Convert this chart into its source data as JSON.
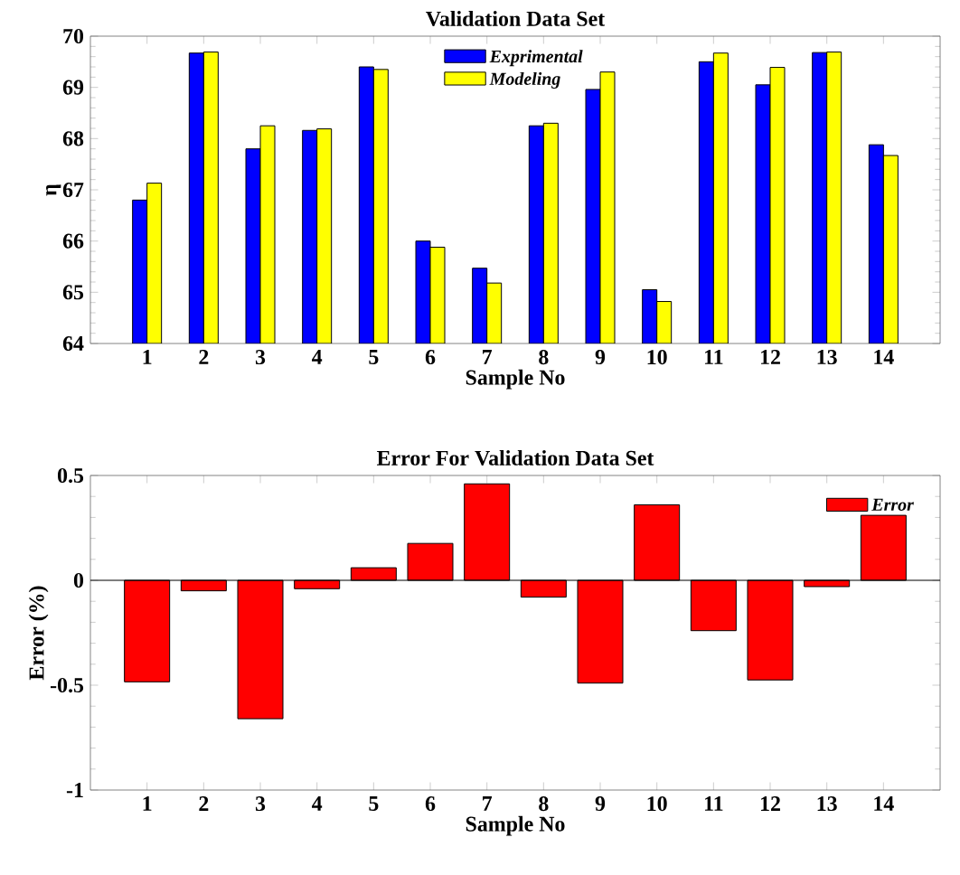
{
  "chart_data": [
    {
      "type": "bar",
      "title": "Validation Data Set",
      "xlabel": "Sample No",
      "ylabel": "η",
      "categories": [
        "1",
        "2",
        "3",
        "4",
        "5",
        "6",
        "7",
        "8",
        "9",
        "10",
        "11",
        "12",
        "13",
        "14"
      ],
      "series": [
        {
          "name": "Exprimental",
          "color": "#0000ff",
          "values": [
            66.8,
            69.67,
            67.8,
            68.16,
            69.4,
            66.0,
            65.47,
            68.25,
            68.96,
            65.05,
            69.5,
            69.05,
            69.68,
            67.88
          ]
        },
        {
          "name": "Modeling",
          "color": "#ffff00",
          "values": [
            67.13,
            69.69,
            68.25,
            68.19,
            69.35,
            65.88,
            65.18,
            68.3,
            69.3,
            64.82,
            69.67,
            69.39,
            69.69,
            67.67
          ]
        }
      ],
      "ylim": [
        64,
        70
      ],
      "yticks": [
        64,
        65,
        66,
        67,
        68,
        69,
        70
      ],
      "legend": "top"
    },
    {
      "type": "bar",
      "title": "Error For Validation Data Set",
      "xlabel": "Sample No",
      "ylabel": "Error (%)",
      "categories": [
        "1",
        "2",
        "3",
        "4",
        "5",
        "6",
        "7",
        "8",
        "9",
        "10",
        "11",
        "12",
        "13",
        "14"
      ],
      "series": [
        {
          "name": "Error",
          "color": "#ff0000",
          "values": [
            -0.484,
            -0.05,
            -0.66,
            -0.04,
            0.06,
            0.176,
            0.46,
            -0.08,
            -0.49,
            0.36,
            -0.24,
            -0.475,
            -0.03,
            0.31
          ]
        }
      ],
      "ylim": [
        -1,
        0.5
      ],
      "yticks": [
        -1,
        -0.5,
        0,
        0.5
      ],
      "legend": "top right",
      "ref_lines": [
        {
          "axis": "y",
          "value": 0,
          "color": "#000000"
        }
      ]
    }
  ]
}
